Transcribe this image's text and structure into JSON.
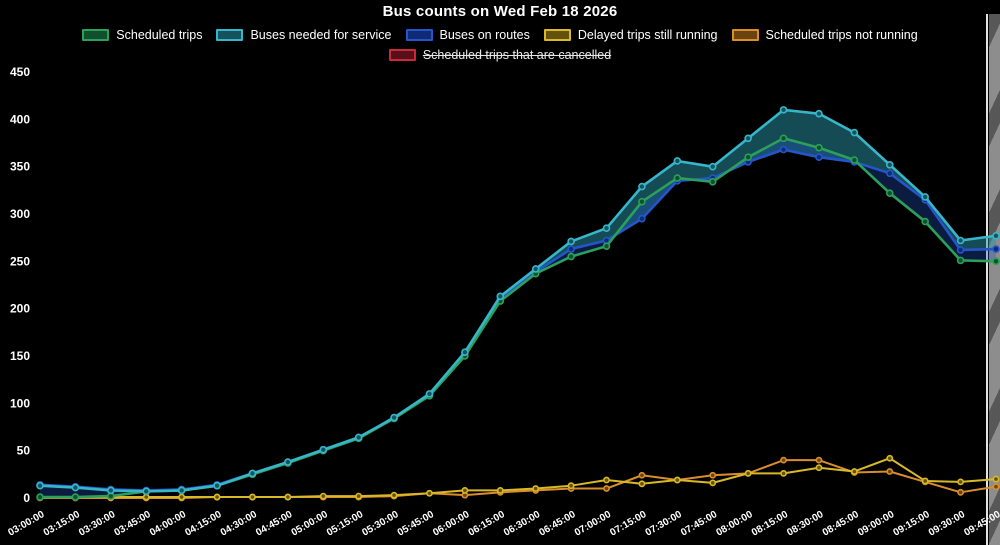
{
  "title": "Bus counts on Wed Feb 18 2026",
  "legend": {
    "items": [
      {
        "label": "Scheduled trips",
        "line_color": "#2aa05a",
        "fill_color": "#11502d",
        "hidden": false
      },
      {
        "label": "Buses needed for service",
        "line_color": "#38b6c9",
        "fill_color": "#14525d",
        "hidden": false
      },
      {
        "label": "Buses on routes",
        "line_color": "#2456c8",
        "fill_color": "#102a78",
        "hidden": false
      },
      {
        "label": "Delayed trips still running",
        "line_color": "#d9b927",
        "fill_color": "#63510e",
        "hidden": false
      },
      {
        "label": "Scheduled trips not running",
        "line_color": "#d98e2b",
        "fill_color": "#6b4310",
        "hidden": false
      },
      {
        "label": "Scheduled trips that are cancelled",
        "line_color": "#cc2936",
        "fill_color": "#55101a",
        "hidden": true
      }
    ]
  },
  "chart_data": {
    "type": "line",
    "title": "Bus counts on Wed Feb 18 2026",
    "x": [
      "03:00:00",
      "03:15:00",
      "03:30:00",
      "03:45:00",
      "04:00:00",
      "04:15:00",
      "04:30:00",
      "04:45:00",
      "05:00:00",
      "05:15:00",
      "05:30:00",
      "05:45:00",
      "06:00:00",
      "06:15:00",
      "06:30:00",
      "06:45:00",
      "07:00:00",
      "07:15:00",
      "07:30:00",
      "07:45:00",
      "08:00:00",
      "08:15:00",
      "08:30:00",
      "08:45:00",
      "09:00:00",
      "09:15:00",
      "09:30:00",
      "09:45:00"
    ],
    "yticks": [
      0,
      50,
      100,
      150,
      200,
      250,
      300,
      350,
      400,
      450
    ],
    "ylim": [
      0,
      450
    ],
    "grid": false,
    "legend_position": "top",
    "background": "#000000",
    "series": [
      {
        "name": "Scheduled trips",
        "color": "#2aa05a",
        "marker_fill": "#11502d",
        "values": [
          1,
          1,
          2,
          7,
          8,
          13,
          25,
          37,
          50,
          63,
          84,
          108,
          150,
          208,
          237,
          255,
          266,
          313,
          338,
          334,
          360,
          380,
          370,
          357,
          322,
          292,
          251,
          250
        ]
      },
      {
        "name": "Buses needed for service",
        "color": "#38b6c9",
        "marker_fill": "#14525d",
        "fill_to": "Buses on routes",
        "fill_color": "rgba(40,150,170,0.50)",
        "values": [
          13,
          11,
          8,
          7,
          8,
          13,
          26,
          38,
          51,
          64,
          85,
          110,
          154,
          213,
          242,
          271,
          285,
          329,
          356,
          350,
          380,
          410,
          406,
          386,
          352,
          318,
          272,
          277
        ]
      },
      {
        "name": "Buses on routes",
        "color": "#2456c8",
        "marker_fill": "#102a78",
        "fill_to": "Scheduled trips",
        "fill_color": "rgba(36,86,200,0.32)",
        "values": [
          14,
          12,
          9,
          8,
          9,
          14,
          26,
          37,
          51,
          64,
          84,
          109,
          152,
          210,
          239,
          263,
          272,
          295,
          335,
          338,
          355,
          368,
          360,
          355,
          343,
          315,
          262,
          263
        ]
      },
      {
        "name": "Delayed trips still running",
        "color": "#d9b927",
        "marker_fill": "#63510e",
        "values": [
          1,
          1,
          1,
          1,
          1,
          1,
          1,
          1,
          2,
          2,
          3,
          5,
          8,
          8,
          10,
          13,
          19,
          15,
          19,
          16,
          26,
          26,
          32,
          28,
          42,
          18,
          17,
          20
        ]
      },
      {
        "name": "Scheduled trips not running",
        "color": "#d98e2b",
        "marker_fill": "#6b4310",
        "values": [
          0,
          0,
          0,
          0,
          0,
          1,
          1,
          1,
          1,
          1,
          2,
          5,
          3,
          6,
          8,
          10,
          10,
          24,
          19,
          24,
          26,
          40,
          40,
          27,
          28,
          17,
          6,
          12
        ]
      },
      {
        "name": "Scheduled trips that are cancelled",
        "color": "#cc2936",
        "marker_fill": "#55101a",
        "hidden": true,
        "values": []
      }
    ]
  }
}
